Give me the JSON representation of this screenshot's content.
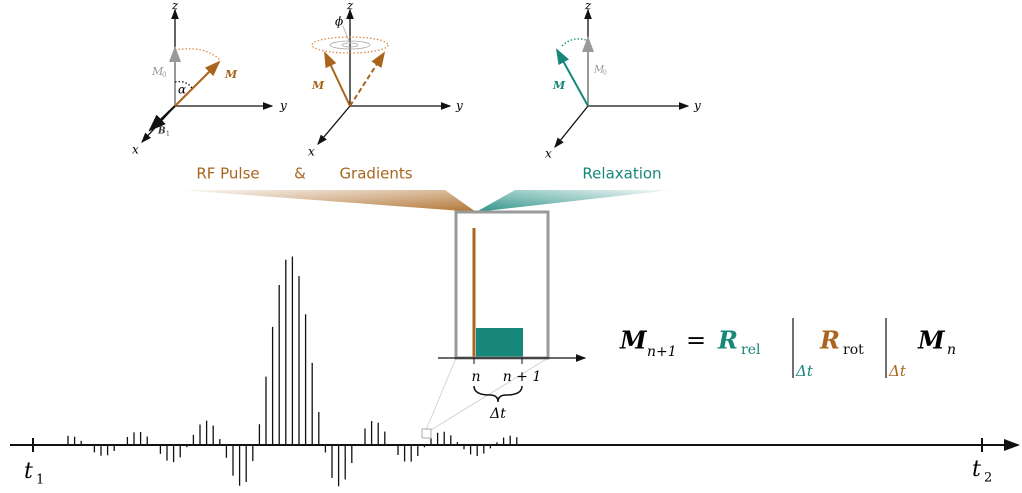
{
  "panels": [
    {
      "z": "z",
      "y": "y",
      "x": "x",
      "m0": "M",
      "m0_sub": "0",
      "alpha": "α",
      "m": "M",
      "b1": "B",
      "b1_sub": "1"
    },
    {
      "z": "z",
      "y": "y",
      "x": "x",
      "phi": "ϕ",
      "m": "M"
    },
    {
      "z": "z",
      "y": "y",
      "x": "x",
      "m0": "M",
      "m0_sub": "0",
      "m": "M"
    }
  ],
  "legend": {
    "rf_pulse": "RF Pulse",
    "and": "&",
    "gradients": "Gradients",
    "relaxation": "Relaxation"
  },
  "inset": {
    "n": "n",
    "n_plus_1": "n + 1",
    "delta_t": "Δt"
  },
  "timeline": {
    "t1": "t",
    "t1_sub": "1",
    "t2": "t",
    "t2_sub": "2"
  },
  "equation": {
    "m": "M",
    "m_sub": "n+1",
    "equals": "=",
    "r_rel": "R",
    "r_rel_sub": "rel",
    "dt1": "Δt",
    "r_rot": "R",
    "r_rot_sub": "rot",
    "dt2": "Δt",
    "m_n": "M",
    "m_n_sub": "n"
  }
}
